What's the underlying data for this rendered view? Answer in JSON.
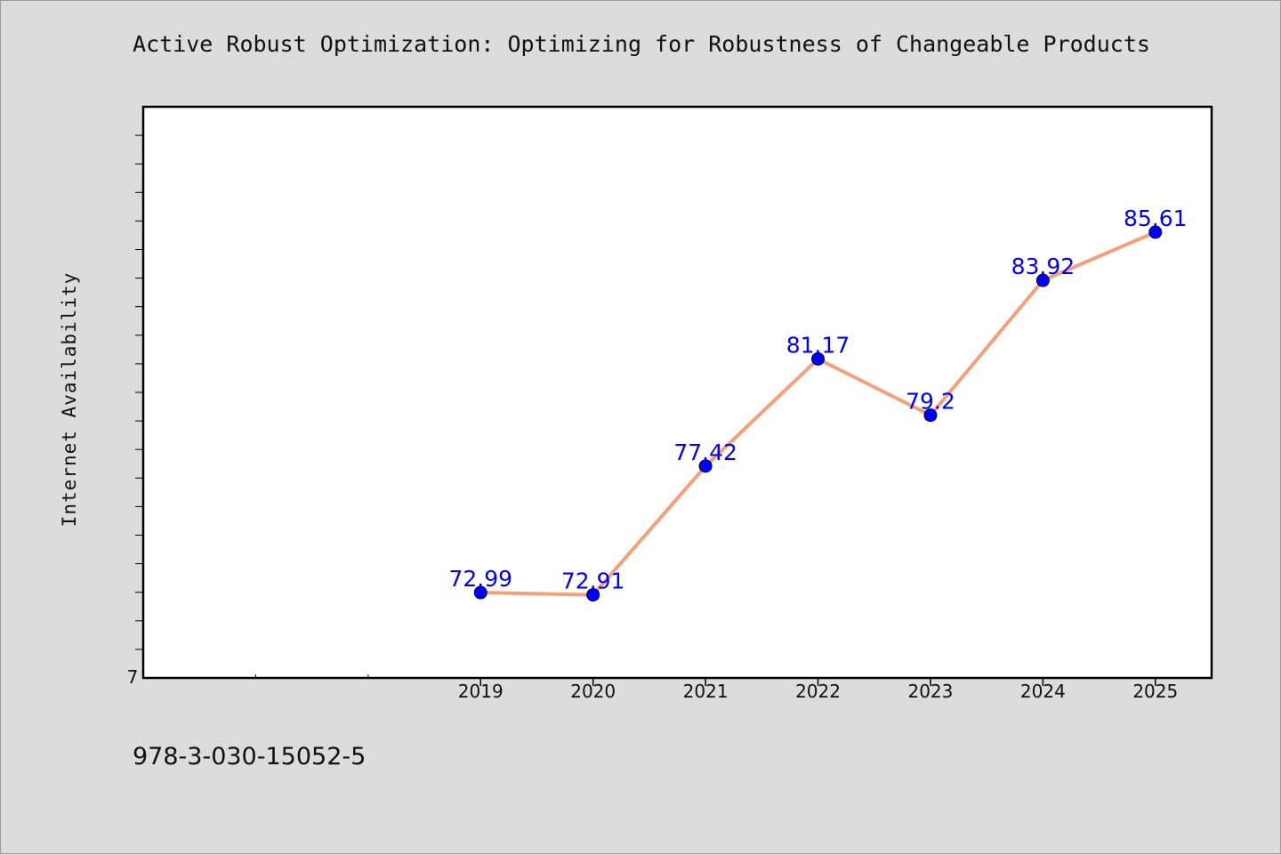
{
  "chart_data": {
    "type": "line",
    "title": "Active Robust Optimization: Optimizing for Robustness of Changeable Products",
    "xlabel": "",
    "ylabel": "Internet Availability",
    "categories": [
      "2019",
      "2020",
      "2021",
      "2022",
      "2023",
      "2024",
      "2025"
    ],
    "series": [
      {
        "values": [
          72.99,
          72.91,
          77.42,
          81.17,
          79.2,
          83.92,
          85.61
        ]
      }
    ],
    "data_labels": [
      "72.99",
      "72.91",
      "77.42",
      "81.17",
      "79.2",
      "83.92",
      "85.61"
    ],
    "y_tick_labels": [
      "7"
    ],
    "x_range": [
      2016,
      2025.5
    ],
    "ylim": [
      70,
      90
    ],
    "grid": false,
    "legend": "none",
    "colors": {
      "line": "#f4a07a",
      "marker": "#0000ff",
      "data_label": "#0000ff",
      "plot_background": "#ffffff",
      "page_background": "#dcdcdc"
    }
  },
  "footer": {
    "code": "978-3-030-15052-5"
  }
}
